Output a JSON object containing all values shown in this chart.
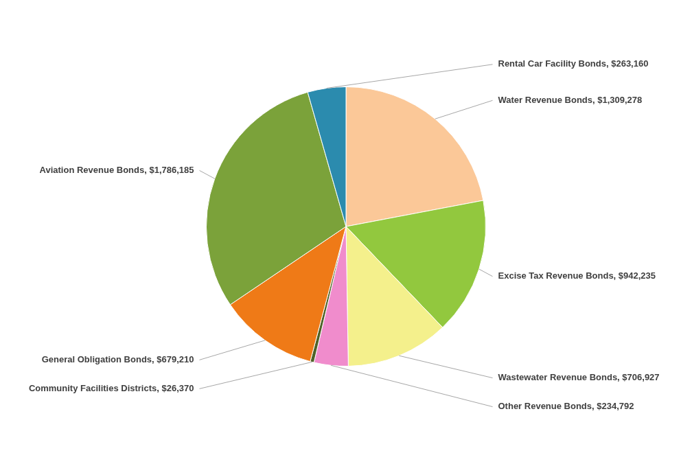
{
  "chart_data": {
    "type": "pie",
    "categories": [
      "Water Revenue Bonds",
      "Excise Tax Revenue Bonds",
      "Wastewater Revenue Bonds",
      "Other Revenue Bonds",
      "Community Facilities Districts",
      "General Obligation Bonds",
      "Aviation Revenue Bonds",
      "Rental Car Facility Bonds"
    ],
    "values": [
      1309278,
      942235,
      706927,
      234792,
      26370,
      679210,
      1786185,
      263160
    ],
    "colors": [
      "#fbc898",
      "#92c83e",
      "#f4f08c",
      "#f08ccc",
      "#4f6228",
      "#ef7a17",
      "#7ba23a",
      "#2b8bae"
    ],
    "value_labels": [
      "$1,309,278",
      "$942,235",
      "$706,927",
      "$234,792",
      "$26,370",
      "$679,210",
      "$1,786,185",
      "$263,160"
    ]
  }
}
